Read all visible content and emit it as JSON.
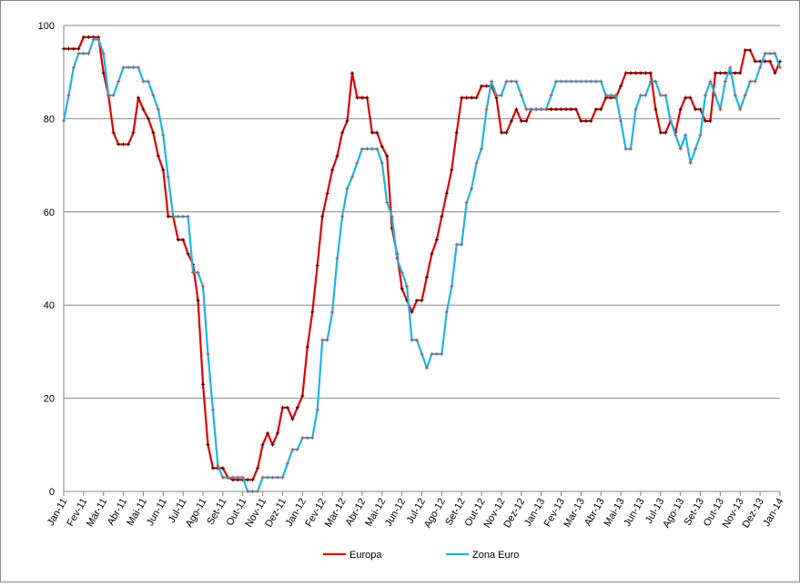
{
  "chart_data": {
    "type": "line",
    "categories": [
      "Jan-11",
      null,
      null,
      null,
      "Fev-11",
      null,
      null,
      null,
      "Mar-11",
      null,
      null,
      null,
      "Abr-11",
      null,
      null,
      null,
      "Mai-11",
      null,
      null,
      null,
      "Jun-11",
      null,
      null,
      null,
      "Jul-11",
      null,
      null,
      null,
      "Ago-11",
      null,
      null,
      null,
      "Set-11",
      null,
      null,
      null,
      "Out-11",
      null,
      null,
      null,
      "Nov-11",
      null,
      null,
      null,
      "Dez-11",
      null,
      null,
      null,
      "Jan-12",
      null,
      null,
      null,
      "Fev-12",
      null,
      null,
      null,
      "Mar-12",
      null,
      null,
      null,
      "Abr-12",
      null,
      null,
      null,
      "Mai-12",
      null,
      null,
      null,
      "Jun-12",
      null,
      null,
      null,
      "Jul-12",
      null,
      null,
      null,
      "Ago-12",
      null,
      null,
      null,
      "Set-12",
      null,
      null,
      null,
      "Out-12",
      null,
      null,
      null,
      "Nov-12",
      null,
      null,
      null,
      "Dez-12",
      null,
      null,
      null,
      "Jan-13",
      null,
      null,
      null,
      "Fev-13",
      null,
      null,
      null,
      "Mar-13",
      null,
      null,
      null,
      "Abr-13",
      null,
      null,
      null,
      "Mai-13",
      null,
      null,
      null,
      "Jun-13",
      null,
      null,
      null,
      "Jul-13",
      null,
      null,
      null,
      "Ago-13",
      null,
      null,
      null,
      "Set-13",
      null,
      null,
      null,
      "Out-13",
      null,
      null,
      null,
      "Nov-13",
      null,
      null,
      null,
      "Dez-13",
      null,
      null,
      null,
      "Jan-14"
    ],
    "series": [
      {
        "name": "Europa",
        "color": "#e00000",
        "values": [
          95,
          95,
          95,
          95,
          97.5,
          97.5,
          97.5,
          97.5,
          89.8,
          85,
          77,
          74.5,
          74.5,
          74.5,
          77,
          84.5,
          82,
          80,
          77,
          72,
          69,
          59,
          59,
          54,
          54,
          51,
          48.7,
          41,
          23,
          10,
          5,
          5,
          5,
          3,
          2.5,
          2.5,
          2.5,
          2.5,
          2.5,
          5,
          10,
          12.5,
          10,
          12.5,
          18,
          18,
          15.5,
          18,
          20.5,
          31,
          38.5,
          48.5,
          59,
          64,
          69,
          72,
          77,
          79.5,
          89.8,
          84.5,
          84.5,
          84.5,
          77,
          77,
          74,
          72,
          56.5,
          51,
          43.5,
          41,
          38.5,
          41,
          41,
          46,
          51,
          54,
          59,
          64,
          69,
          77,
          84.5,
          84.5,
          84.5,
          84.5,
          87,
          87,
          87,
          84.5,
          77,
          77,
          79.5,
          82,
          79.5,
          79.5,
          82,
          82,
          82,
          82,
          82,
          82,
          82,
          82,
          82,
          82,
          79.5,
          79.5,
          79.5,
          82,
          82,
          84.5,
          84.5,
          84.5,
          87,
          89.8,
          89.8,
          89.8,
          89.8,
          89.8,
          89.8,
          82,
          77,
          77,
          79.5,
          77,
          82,
          84.5,
          84.5,
          82,
          82,
          79.5,
          79.5,
          89.8,
          89.8,
          89.8,
          89.8,
          89.8,
          89.8,
          94.7,
          94.7,
          92.3,
          92.3,
          92.3,
          92.3,
          89.8,
          92.3
        ]
      },
      {
        "name": "Zona Euro",
        "color": "#1eb4e6",
        "values": [
          79.5,
          85,
          91,
          94,
          94,
          94,
          97,
          97,
          94,
          85,
          85,
          88,
          91,
          91,
          91,
          91,
          88,
          88,
          85,
          82,
          76.5,
          67.5,
          59,
          59,
          59,
          59,
          47,
          47,
          44,
          29.5,
          17.5,
          5.5,
          3,
          3,
          3,
          3,
          3,
          0,
          0,
          0,
          3,
          3,
          3,
          3,
          3,
          6,
          9,
          9,
          11.5,
          11.5,
          11.5,
          17.5,
          32.5,
          32.5,
          38.5,
          50,
          59,
          65,
          67.5,
          70.5,
          73.5,
          73.5,
          73.5,
          73.5,
          70.5,
          62,
          59,
          50,
          47,
          44,
          32.5,
          32.5,
          29.5,
          26.5,
          29.5,
          29.5,
          29.5,
          38.5,
          44,
          53,
          53,
          62,
          65,
          70.5,
          73.5,
          82,
          88,
          85,
          85,
          88,
          88,
          88,
          85,
          82,
          82,
          82,
          82,
          82,
          85,
          88,
          88,
          88,
          88,
          88,
          88,
          88,
          88,
          88,
          88,
          85,
          85,
          85,
          79.5,
          73.5,
          73.5,
          82,
          85,
          85,
          88,
          88,
          85,
          85,
          79.5,
          76.5,
          73.5,
          76.5,
          70.5,
          73.5,
          76.5,
          85,
          88,
          85,
          82,
          88,
          91,
          85,
          82,
          85,
          88,
          88,
          91,
          94,
          94,
          94,
          91
        ]
      }
    ],
    "ylim": [
      0,
      100
    ],
    "yticks": [
      0,
      20,
      40,
      60,
      80,
      100
    ],
    "grid": true,
    "legend": "bottom"
  }
}
